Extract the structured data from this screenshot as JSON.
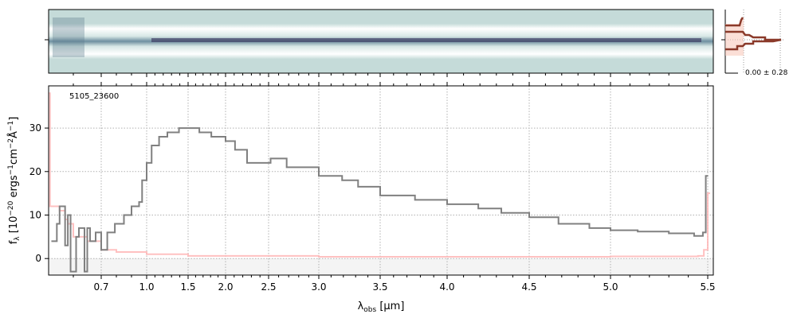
{
  "chart_data": [
    {
      "type": "heatmap",
      "panel": "2D spectrum",
      "colors": {
        "background": "#c5dbd9",
        "trace": "#3b3860",
        "gap": "#ffffff"
      }
    },
    {
      "type": "line",
      "panel": "spatial profile",
      "label": "0.00 ± 0.28",
      "colors": {
        "line": "#8b3a2a",
        "fill": "#f8c9bc"
      }
    },
    {
      "type": "line",
      "label": "5105_23600",
      "xlabel_main": "λ",
      "xlabel_sub": "obs",
      "xlabel_unit": " [μm]",
      "ylabel": "f_λ [10^-20 ergs^-1 cm^-2 Å^-1]",
      "xlim": [
        0.51,
        5.52
      ],
      "ylim": [
        -3.8,
        39.7
      ],
      "xticks": [
        "0.7",
        "1.0",
        "1.5",
        "2.0",
        "2.5",
        "3.0",
        "3.5",
        "4.0",
        "4.5",
        "5.0",
        "5.5"
      ],
      "yticks": [
        "0",
        "10",
        "20",
        "30"
      ],
      "grid": true,
      "series": [
        {
          "role": "flux",
          "color": "#808080",
          "step": true,
          "x": [
            0.52,
            0.54,
            0.55,
            0.57,
            0.58,
            0.59,
            0.61,
            0.62,
            0.64,
            0.65,
            0.66,
            0.68,
            0.7,
            0.74,
            0.79,
            0.85,
            0.9,
            0.95,
            0.97,
            1.0,
            1.06,
            1.15,
            1.25,
            1.39,
            1.49,
            1.65,
            1.81,
            2.0,
            2.11,
            2.25,
            2.52,
            2.68,
            3.0,
            3.19,
            3.32,
            3.5,
            3.76,
            4.0,
            4.19,
            4.33,
            4.5,
            4.68,
            4.87,
            5.0,
            5.14,
            5.3,
            5.43,
            5.475,
            5.49
          ],
          "y": [
            4,
            8,
            12,
            3,
            10,
            -3,
            5,
            7,
            -3,
            7,
            4,
            6,
            2,
            6,
            8,
            10,
            12,
            13,
            18,
            22,
            26,
            28,
            29,
            30,
            30,
            29,
            28,
            27,
            25,
            22,
            23,
            21,
            19,
            18,
            16.5,
            14.5,
            13.5,
            12.5,
            11.5,
            10.5,
            9.5,
            8,
            7,
            6.5,
            6.2,
            5.8,
            5.2,
            6,
            19
          ]
        },
        {
          "role": "error",
          "color": "#ffb6b6",
          "step": true,
          "x": [
            0.51,
            0.515,
            0.55,
            0.57,
            0.58,
            0.6,
            0.65,
            0.7,
            0.8,
            1.0,
            1.5,
            3.0,
            5.0,
            5.45,
            5.48,
            5.5
          ],
          "y": [
            38,
            12,
            11,
            9,
            8,
            5,
            4,
            2,
            1.5,
            1,
            0.6,
            0.4,
            0.5,
            0.6,
            2,
            15
          ]
        }
      ]
    }
  ]
}
